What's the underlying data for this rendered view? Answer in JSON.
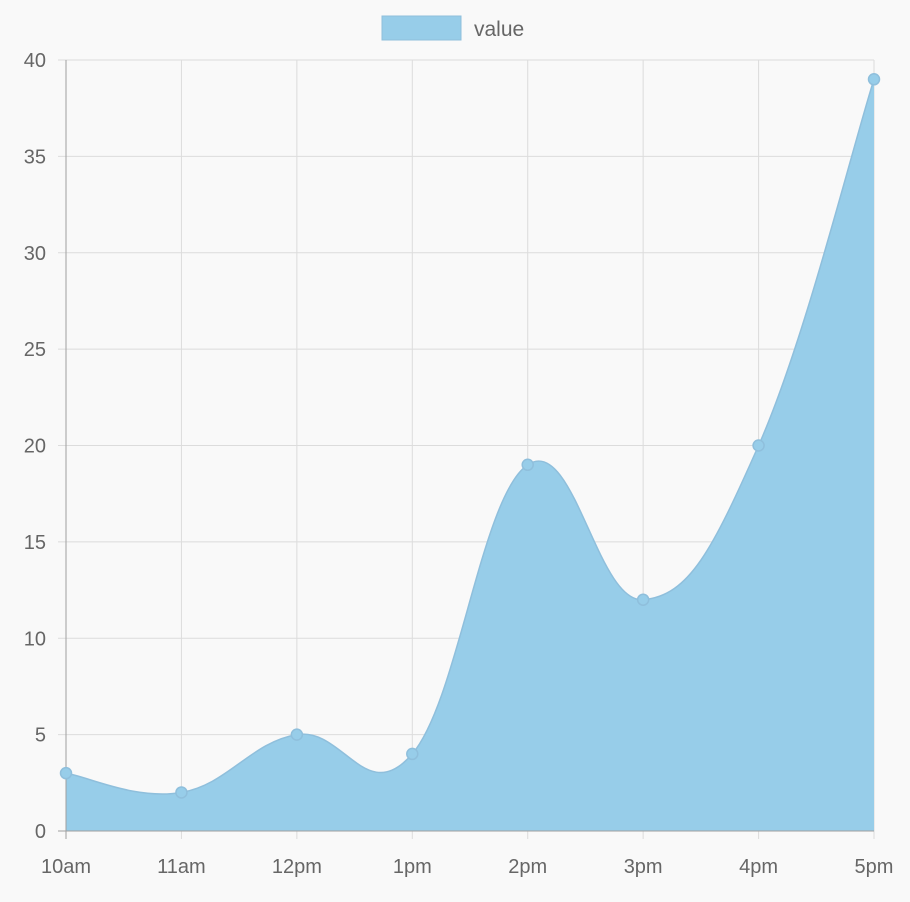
{
  "chart_data": {
    "type": "area",
    "x": [
      "10am",
      "11am",
      "12pm",
      "1pm",
      "2pm",
      "3pm",
      "4pm",
      "5pm"
    ],
    "series": [
      {
        "name": "value",
        "values": [
          3,
          2,
          5,
          4,
          19,
          12,
          20,
          39
        ]
      }
    ],
    "ylim": [
      0,
      40
    ],
    "yticks": [
      0,
      5,
      10,
      15,
      20,
      25,
      30,
      35,
      40
    ],
    "grid": true,
    "legend": "top-center",
    "smooth": true,
    "colors": {
      "fill": "#97cde9",
      "stroke": "#8fbfdc",
      "point": "#97cde9",
      "grid": "#dcdcdc",
      "axis": "#a0a0a0",
      "text": "#666666"
    }
  }
}
